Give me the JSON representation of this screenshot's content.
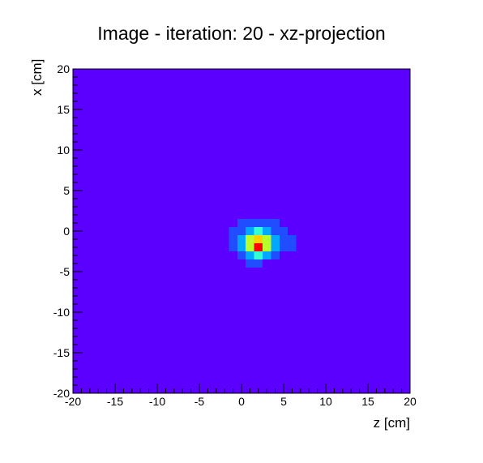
{
  "chart_data": {
    "type": "heatmap",
    "title": "Image - iteration: 20 - xz-projection",
    "xlabel": "z [cm]",
    "ylabel": "x [cm]",
    "xlim": [
      -20,
      20
    ],
    "ylim": [
      -20,
      20
    ],
    "xticks": [
      -20,
      -15,
      -10,
      -5,
      0,
      5,
      10,
      15,
      20
    ],
    "yticks": [
      -20,
      -15,
      -10,
      -5,
      0,
      5,
      10,
      15,
      20
    ],
    "bin_size": 1,
    "background_value": 0,
    "grid": false,
    "colormap": [
      "#5b00ff",
      "#1f4dff",
      "#00a8ff",
      "#33ffd0",
      "#b9ff2b",
      "#ffd000",
      "#ff0000"
    ],
    "cells": [
      {
        "z": 0,
        "x": 1,
        "v": 1
      },
      {
        "z": 1,
        "x": 1,
        "v": 1
      },
      {
        "z": 2,
        "x": 1,
        "v": 1
      },
      {
        "z": 3,
        "x": 1,
        "v": 1
      },
      {
        "z": 4,
        "x": 1,
        "v": 1
      },
      {
        "z": -1,
        "x": 0,
        "v": 1
      },
      {
        "z": 0,
        "x": 0,
        "v": 1
      },
      {
        "z": 1,
        "x": 0,
        "v": 2
      },
      {
        "z": 2,
        "x": 0,
        "v": 3
      },
      {
        "z": 3,
        "x": 0,
        "v": 2
      },
      {
        "z": 4,
        "x": 0,
        "v": 1
      },
      {
        "z": 5,
        "x": 0,
        "v": 1
      },
      {
        "z": -1,
        "x": -1,
        "v": 1
      },
      {
        "z": 0,
        "x": -1,
        "v": 2
      },
      {
        "z": 1,
        "x": -1,
        "v": 4
      },
      {
        "z": 2,
        "x": -1,
        "v": 5
      },
      {
        "z": 3,
        "x": -1,
        "v": 4
      },
      {
        "z": 4,
        "x": -1,
        "v": 2
      },
      {
        "z": 5,
        "x": -1,
        "v": 1
      },
      {
        "z": 6,
        "x": -1,
        "v": 1
      },
      {
        "z": -1,
        "x": -2,
        "v": 1
      },
      {
        "z": 0,
        "x": -2,
        "v": 2
      },
      {
        "z": 1,
        "x": -2,
        "v": 4
      },
      {
        "z": 2,
        "x": -2,
        "v": 6
      },
      {
        "z": 3,
        "x": -2,
        "v": 4
      },
      {
        "z": 4,
        "x": -2,
        "v": 2
      },
      {
        "z": 5,
        "x": -2,
        "v": 1
      },
      {
        "z": 6,
        "x": -2,
        "v": 1
      },
      {
        "z": 0,
        "x": -3,
        "v": 1
      },
      {
        "z": 1,
        "x": -3,
        "v": 2
      },
      {
        "z": 2,
        "x": -3,
        "v": 3
      },
      {
        "z": 3,
        "x": -3,
        "v": 2
      },
      {
        "z": 4,
        "x": -3,
        "v": 1
      },
      {
        "z": 1,
        "x": -4,
        "v": 1
      },
      {
        "z": 2,
        "x": -4,
        "v": 1
      }
    ]
  }
}
